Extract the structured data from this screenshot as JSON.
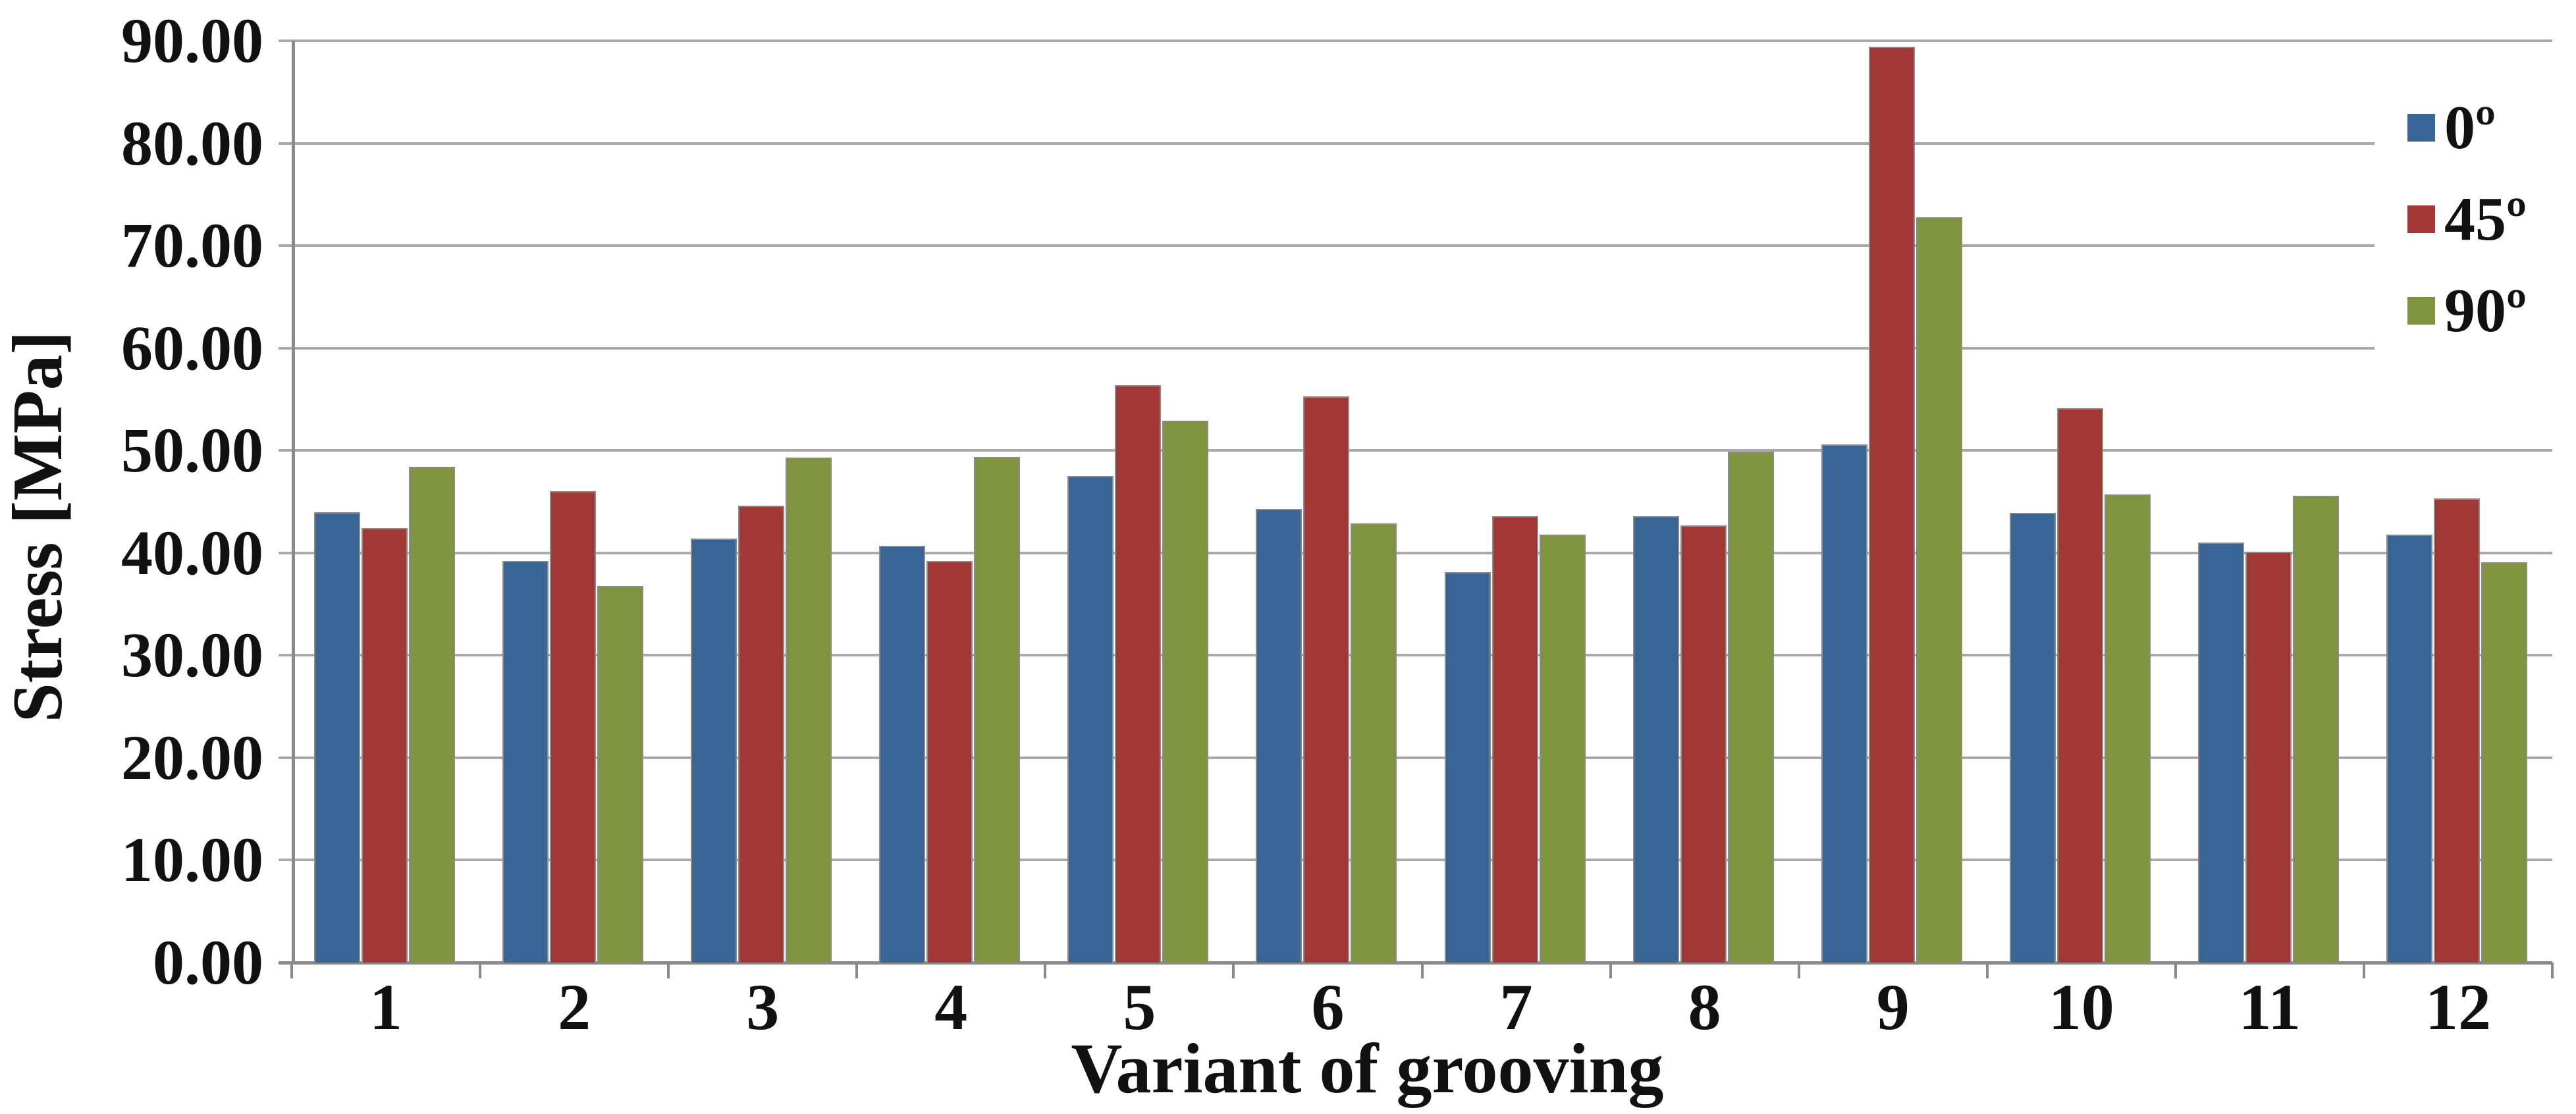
{
  "chart_data": {
    "type": "bar",
    "title": "",
    "xlabel": "Variant of grooving",
    "ylabel": "Stress [MPa]",
    "categories": [
      "1",
      "2",
      "3",
      "4",
      "5",
      "6",
      "7",
      "8",
      "9",
      "10",
      "11",
      "12"
    ],
    "series": [
      {
        "name": "0º",
        "color": "#386496",
        "values": [
          44.0,
          39.2,
          41.4,
          40.7,
          47.5,
          44.3,
          38.1,
          43.6,
          50.6,
          43.9,
          41.0,
          41.8
        ]
      },
      {
        "name": "45º",
        "color": "#A13836",
        "values": [
          42.4,
          46.0,
          44.6,
          39.2,
          56.4,
          55.3,
          43.6,
          42.7,
          89.4,
          54.1,
          40.1,
          45.3
        ]
      },
      {
        "name": "90º",
        "color": "#7E943E",
        "values": [
          48.4,
          36.8,
          49.3,
          49.4,
          52.9,
          42.9,
          41.8,
          49.9,
          72.8,
          45.7,
          45.6,
          39.1
        ]
      }
    ],
    "ylim": [
      0,
      90
    ],
    "ytick_step": 10,
    "ytick_labels": [
      "0.00",
      "10.00",
      "20.00",
      "30.00",
      "40.00",
      "50.00",
      "60.00",
      "70.00",
      "80.00",
      "90.00"
    ],
    "grid": "horizontal",
    "legend_position": "right",
    "gridline_color": "#a9a9a9",
    "axis_color": "#8a8a8a",
    "text_color": "#111111"
  }
}
